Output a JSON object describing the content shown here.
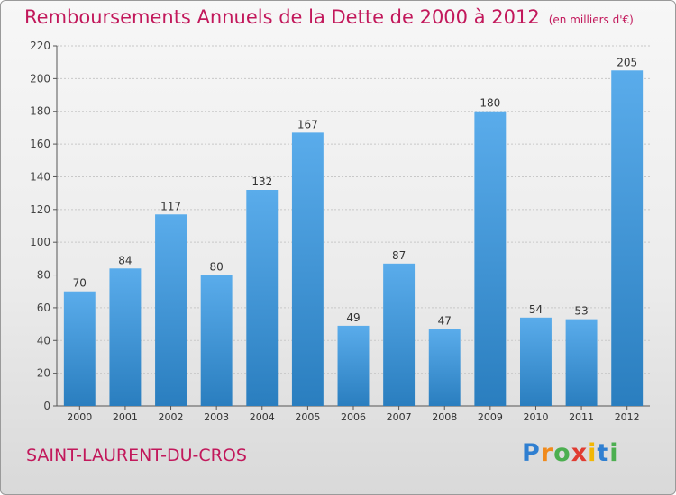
{
  "header": {
    "title": "Remboursements Annuels de la Dette de 2000 à 2012",
    "unit": "(en milliers d'€)"
  },
  "footer": {
    "commune": "SAINT-LAURENT-DU-CROS",
    "logo_letters": [
      {
        "ch": "P",
        "color": "#2f7fd1"
      },
      {
        "ch": "r",
        "color": "#f08a1c"
      },
      {
        "ch": "o",
        "color": "#4caf50"
      },
      {
        "ch": "x",
        "color": "#e03c31"
      },
      {
        "ch": "i",
        "color": "#f2b705"
      },
      {
        "ch": "t",
        "color": "#2f7fd1"
      },
      {
        "ch": "i",
        "color": "#4caf50"
      }
    ]
  },
  "colors": {
    "bar_top": "#5aaceb",
    "bar_bottom": "#2a7ebf",
    "grid": "#c8c8c8",
    "axis": "#555555",
    "accent": "#c2185b"
  },
  "chart_data": {
    "type": "bar",
    "title": "Remboursements Annuels de la Dette de 2000 à 2012",
    "categories": [
      "2000",
      "2001",
      "2002",
      "2003",
      "2004",
      "2005",
      "2006",
      "2007",
      "2008",
      "2009",
      "2010",
      "2011",
      "2012"
    ],
    "values": [
      70,
      84,
      117,
      80,
      132,
      167,
      49,
      87,
      47,
      180,
      54,
      53,
      205
    ],
    "ylim": [
      0,
      220
    ],
    "yticks": [
      0,
      20,
      40,
      60,
      80,
      100,
      120,
      140,
      160,
      180,
      200,
      220
    ],
    "grid": true,
    "xlabel": "",
    "ylabel": ""
  }
}
